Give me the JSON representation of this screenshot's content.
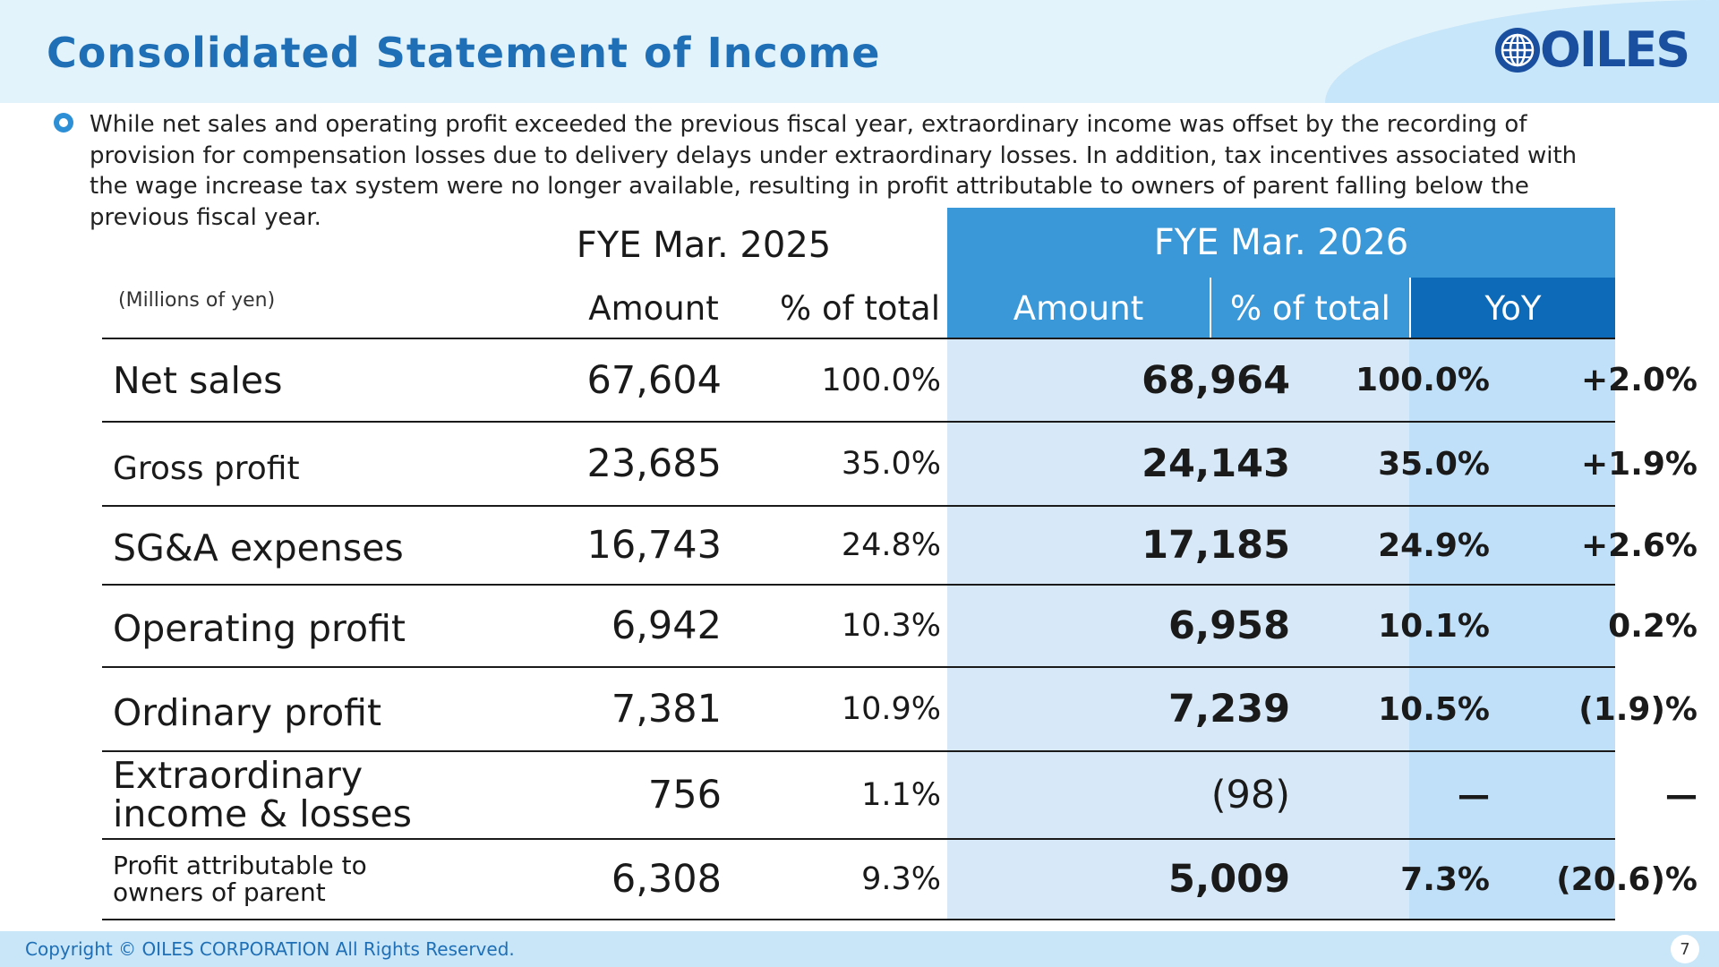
{
  "header": {
    "title": "Consolidated Statement of Income",
    "logo_text": "OILES"
  },
  "summary": "While net sales and operating profit exceeded the previous fiscal year, extraordinary income was offset by the recording of provision for compensation losses due to delivery delays under extraordinary losses. In addition, tax incentives associated with the wage increase tax system were no longer available, resulting in profit attributable to owners of parent falling below the previous fiscal year.",
  "table": {
    "unit": "(Millions of yen)",
    "group_2025": "FYE Mar. 2025",
    "group_2026": "FYE Mar. 2026",
    "col_amount": "Amount",
    "col_pct": "% of total",
    "col_yoy": "YoY",
    "rows": [
      {
        "label": "Net sales",
        "a25": "67,604",
        "p25": "100.0%",
        "a26": "68,964",
        "p26": "100.0%",
        "yoy": "+2.0%"
      },
      {
        "label": "Gross profit",
        "a25": "23,685",
        "p25": "35.0%",
        "a26": "24,143",
        "p26": "35.0%",
        "yoy": "+1.9%"
      },
      {
        "label": "SG&A expenses",
        "a25": "16,743",
        "p25": "24.8%",
        "a26": "17,185",
        "p26": "24.9%",
        "yoy": "+2.6%"
      },
      {
        "label": "Operating profit",
        "a25": "6,942",
        "p25": "10.3%",
        "a26": "6,958",
        "p26": "10.1%",
        "yoy": "0.2%"
      },
      {
        "label": "Ordinary profit",
        "a25": "7,381",
        "p25": "10.9%",
        "a26": "7,239",
        "p26": "10.5%",
        "yoy": "(1.9)%"
      },
      {
        "label": "Extraordinary income & losses",
        "a25": "756",
        "p25": "1.1%",
        "a26": "(98)",
        "p26": "—",
        "yoy": "—"
      },
      {
        "label": "Profit attributable to owners of parent",
        "a25": "6,308",
        "p25": "9.3%",
        "a26": "5,009",
        "p26": "7.3%",
        "yoy": "(20.6)%"
      }
    ]
  },
  "footer": {
    "copyright": "Copyright © OILES CORPORATION All Rights Reserved.",
    "page": "7"
  },
  "colors": {
    "title": "#1f6fb6",
    "group_header_2026": "#3a97d8",
    "subheader_2026": "#3a97d8",
    "yoy_header": "#0d6ab8",
    "col_bg_2026": "#d7e9f8",
    "col_bg_yoy": "#bfe0f8"
  }
}
